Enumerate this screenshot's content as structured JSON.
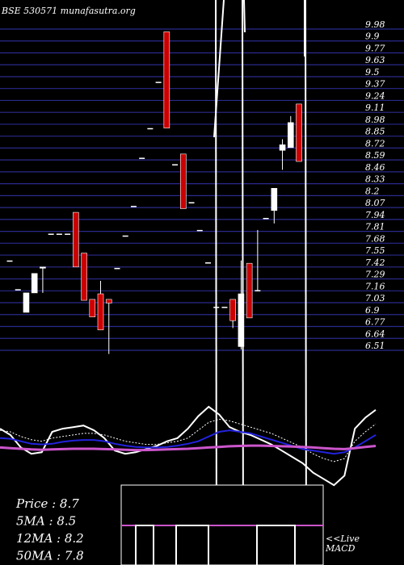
{
  "header": {
    "title": "BSE 530571 munafasutra.org"
  },
  "chart_data": {
    "type": "candlestick",
    "price_axis": {
      "ticks": [
        "9.98",
        "9.9",
        "9.77",
        "9.63",
        "9.5",
        "9.37",
        "9.24",
        "9.11",
        "8.98",
        "8.85",
        "8.72",
        "8.59",
        "8.46",
        "8.33",
        "8.2",
        "8.07",
        "7.94",
        "7.81",
        "7.68",
        "7.55",
        "7.42",
        "7.29",
        "7.16",
        "7.03",
        "6.9",
        "6.77",
        "6.64",
        "6.51"
      ],
      "range": [
        6.51,
        9.98
      ]
    },
    "candles": [
      {
        "o": 7.48,
        "h": 7.48,
        "l": 7.48,
        "c": 7.48,
        "dir": "flat"
      },
      {
        "o": 7.17,
        "h": 7.17,
        "l": 7.17,
        "c": 7.17,
        "dir": "flat"
      },
      {
        "o": 6.92,
        "h": 7.13,
        "l": 6.92,
        "c": 7.13,
        "dir": "up"
      },
      {
        "o": 7.13,
        "h": 7.34,
        "l": 7.13,
        "c": 7.34,
        "dir": "up"
      },
      {
        "o": 7.41,
        "h": 7.41,
        "l": 7.13,
        "c": 7.41,
        "dir": "up"
      },
      {
        "o": 7.77,
        "h": 7.77,
        "l": 7.77,
        "c": 7.77,
        "dir": "flat"
      },
      {
        "o": 7.77,
        "h": 7.77,
        "l": 7.77,
        "c": 7.77,
        "dir": "flat"
      },
      {
        "o": 7.77,
        "h": 7.77,
        "l": 7.77,
        "c": 7.77,
        "dir": "flat"
      },
      {
        "o": 8.0,
        "h": 8.0,
        "l": 7.41,
        "c": 7.41,
        "dir": "down"
      },
      {
        "o": 7.56,
        "h": 7.56,
        "l": 7.05,
        "c": 7.05,
        "dir": "down"
      },
      {
        "o": 7.06,
        "h": 7.06,
        "l": 6.87,
        "c": 6.87,
        "dir": "down"
      },
      {
        "o": 7.12,
        "h": 7.26,
        "l": 6.73,
        "c": 6.73,
        "dir": "down"
      },
      {
        "o": 7.06,
        "h": 7.06,
        "l": 6.47,
        "c": 7.02,
        "dir": "down"
      },
      {
        "o": 7.4,
        "h": 7.4,
        "l": 7.4,
        "c": 7.4,
        "dir": "flat"
      },
      {
        "o": 7.75,
        "h": 7.75,
        "l": 7.75,
        "c": 7.75,
        "dir": "flat"
      },
      {
        "o": 8.07,
        "h": 8.07,
        "l": 8.07,
        "c": 8.07,
        "dir": "flat"
      },
      {
        "o": 8.59,
        "h": 8.59,
        "l": 8.59,
        "c": 8.59,
        "dir": "flat"
      },
      {
        "o": 8.91,
        "h": 8.91,
        "l": 8.91,
        "c": 8.91,
        "dir": "flat"
      },
      {
        "o": 9.41,
        "h": 9.41,
        "l": 9.41,
        "c": 9.41,
        "dir": "flat"
      },
      {
        "o": 9.95,
        "h": 9.95,
        "l": 8.91,
        "c": 8.91,
        "dir": "down"
      },
      {
        "o": 8.52,
        "h": 8.52,
        "l": 8.52,
        "c": 8.52,
        "dir": "flat"
      },
      {
        "o": 8.63,
        "h": 8.63,
        "l": 8.04,
        "c": 8.04,
        "dir": "down"
      },
      {
        "o": 8.11,
        "h": 8.11,
        "l": 8.11,
        "c": 8.11,
        "dir": "flat"
      },
      {
        "o": 7.81,
        "h": 7.81,
        "l": 7.81,
        "c": 7.81,
        "dir": "flat"
      },
      {
        "o": 7.46,
        "h": 7.46,
        "l": 7.46,
        "c": 7.46,
        "dir": "flat"
      },
      {
        "o": 6.98,
        "h": 6.98,
        "l": 6.98,
        "c": 6.98,
        "dir": "flat"
      },
      {
        "o": 6.98,
        "h": 6.98,
        "l": 6.98,
        "c": 6.98,
        "dir": "flat"
      },
      {
        "o": 7.06,
        "h": 7.06,
        "l": 6.75,
        "c": 6.83,
        "dir": "down"
      },
      {
        "o": 6.55,
        "h": 7.48,
        "l": 6.52,
        "c": 7.12,
        "dir": "up"
      },
      {
        "o": 7.45,
        "h": 7.45,
        "l": 6.86,
        "c": 6.86,
        "dir": "down"
      },
      {
        "o": 7.16,
        "h": 7.81,
        "l": 7.16,
        "c": 7.16,
        "dir": "flat"
      },
      {
        "o": 7.94,
        "h": 7.94,
        "l": 7.94,
        "c": 7.94,
        "dir": "flat"
      },
      {
        "o": 8.02,
        "h": 8.26,
        "l": 7.88,
        "c": 8.26,
        "dir": "up"
      },
      {
        "o": 8.67,
        "h": 8.79,
        "l": 8.46,
        "c": 8.73,
        "dir": "up"
      },
      {
        "o": 8.7,
        "h": 9.04,
        "l": 8.7,
        "c": 8.97,
        "dir": "up"
      },
      {
        "o": 9.17,
        "h": 9.17,
        "l": 8.55,
        "c": 8.55,
        "dir": "down"
      }
    ],
    "indicator_series": [
      {
        "values": [
          0.6,
          0.4,
          0.0,
          -0.2,
          -0.15,
          0.5,
          0.6,
          0.65,
          0.7,
          0.55,
          0.3,
          -0.1,
          -0.2,
          -0.15,
          -0.05,
          0.05,
          0.2,
          0.3,
          0.6,
          1.0,
          1.3,
          1.05,
          0.65,
          0.5,
          0.4,
          0.25,
          0.1,
          -0.1,
          -0.3,
          -0.5,
          -0.8,
          -1.0,
          -1.2,
          -0.9,
          0.6,
          0.95,
          1.2
        ]
      },
      {
        "values": [
          0.55,
          0.5,
          0.35,
          0.25,
          0.2,
          0.3,
          0.35,
          0.4,
          0.45,
          0.45,
          0.4,
          0.3,
          0.2,
          0.15,
          0.1,
          0.1,
          0.15,
          0.2,
          0.3,
          0.55,
          0.8,
          0.9,
          0.85,
          0.75,
          0.65,
          0.55,
          0.45,
          0.3,
          0.15,
          0.0,
          -0.2,
          -0.35,
          -0.45,
          -0.35,
          0.2,
          0.5,
          0.75
        ]
      },
      {
        "values": [
          0.3,
          0.28,
          0.2,
          0.12,
          0.1,
          0.12,
          0.18,
          0.22,
          0.24,
          0.24,
          0.2,
          0.12,
          0.06,
          0.02,
          0.0,
          0.0,
          0.02,
          0.06,
          0.12,
          0.2,
          0.35,
          0.5,
          0.55,
          0.5,
          0.45,
          0.35,
          0.25,
          0.15,
          0.05,
          -0.05,
          -0.1,
          -0.15,
          -0.2,
          -0.15,
          0.0,
          0.2,
          0.4
        ]
      },
      {
        "values": [
          0.0,
          -0.02,
          -0.04,
          -0.06,
          -0.07,
          -0.06,
          -0.05,
          -0.04,
          -0.04,
          -0.04,
          -0.05,
          -0.06,
          -0.07,
          -0.08,
          -0.08,
          -0.07,
          -0.06,
          -0.05,
          -0.04,
          -0.02,
          0.0,
          0.02,
          0.04,
          0.05,
          0.06,
          0.06,
          0.05,
          0.04,
          0.03,
          0.02,
          0.0,
          -0.02,
          -0.04,
          -0.05,
          -0.02,
          0.02,
          0.05
        ]
      }
    ],
    "indicator_range": [
      -1.3,
      1.4
    ]
  },
  "stats": [
    {
      "label": "Price",
      "value": "8.7"
    },
    {
      "label": "5MA",
      "value": "8.5"
    },
    {
      "label": "12MA",
      "value": "8.2"
    },
    {
      "label": "50MA",
      "value": "7.8"
    }
  ],
  "macd_label": "<<Live\nMACD",
  "colors": {
    "background": "#000000",
    "gridline": "#2a2a8c",
    "up_candle": "#ffffff",
    "down_candle": "#cc0000",
    "text": "#ffffff",
    "series_white": "#ffffff",
    "series_blue": "#2222dd",
    "series_purple": "#cc55cc"
  }
}
